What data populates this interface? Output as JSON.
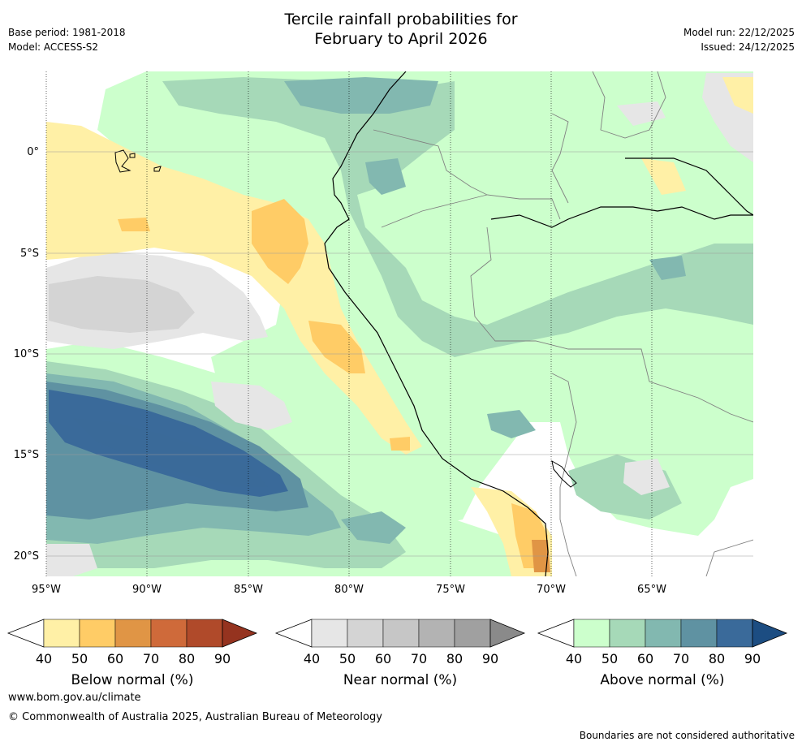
{
  "title_line1": "Tercile rainfall probabilities for",
  "title_line2": "February to April 2026",
  "base_period": "Base period: 1981-2018",
  "model": "Model: ACCESS-S2",
  "model_run": "Model run: 22/12/2025",
  "issued": "Issued: 24/12/2025",
  "map": {
    "lon_labels": [
      "95°W",
      "90°W",
      "85°W",
      "80°W",
      "75°W",
      "70°W",
      "65°W"
    ],
    "lat_labels": [
      "0°",
      "5°S",
      "10°S",
      "15°S",
      "20°S"
    ]
  },
  "colorbars": [
    {
      "label": "Below normal (%)",
      "ticks": [
        "40",
        "50",
        "60",
        "70",
        "80",
        "90"
      ],
      "colors": [
        "#fff0a6",
        "#ffcc66",
        "#e09545",
        "#cf6a3a",
        "#b04a2a",
        "#95331f"
      ]
    },
    {
      "label": "Near normal (%)",
      "ticks": [
        "40",
        "50",
        "60",
        "70",
        "80",
        "90"
      ],
      "colors": [
        "#e6e6e6",
        "#d4d4d4",
        "#c6c6c6",
        "#b3b3b3",
        "#a0a0a0",
        "#8a8a8a"
      ]
    },
    {
      "label": "Above normal (%)",
      "ticks": [
        "40",
        "50",
        "60",
        "70",
        "80",
        "90"
      ],
      "colors": [
        "#ccffcc",
        "#a6d9b8",
        "#82b8b0",
        "#5f92a2",
        "#3a6a9a",
        "#1c4d82"
      ]
    }
  ],
  "footer_url": "www.bom.gov.au/climate",
  "copyright": "© Commonwealth of Australia 2025, Australian Bureau of Meteorology",
  "disclaimer": "Boundaries are not considered authoritative"
}
